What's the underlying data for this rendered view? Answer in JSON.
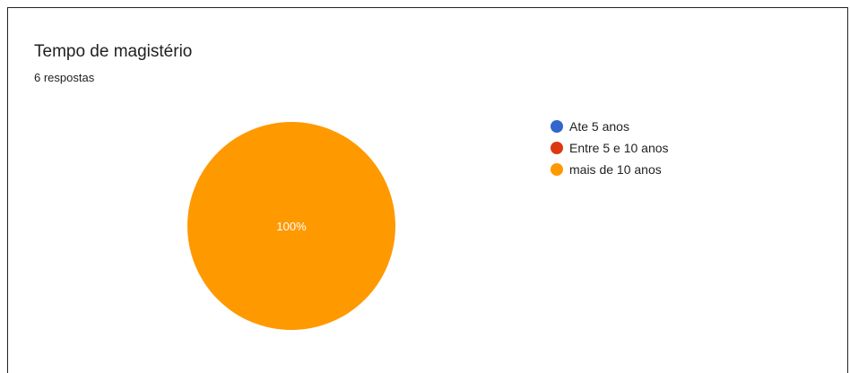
{
  "header": {
    "title": "Tempo de magistério",
    "subtitle": "6 respostas"
  },
  "chart_data": {
    "type": "pie",
    "categories": [
      "Ate 5 anos",
      "Entre 5 e 10 anos",
      "mais de 10 anos"
    ],
    "values": [
      0,
      0,
      100
    ],
    "colors": [
      "#3366cc",
      "#dc3912",
      "#ff9900"
    ],
    "data_labels": [
      "",
      "",
      "100%"
    ],
    "legend_position": "right"
  }
}
